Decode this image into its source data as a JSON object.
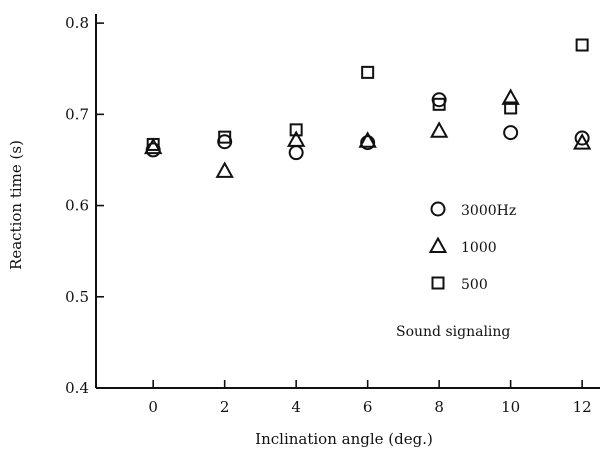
{
  "chart_data": {
    "type": "scatter",
    "title": "",
    "xlabel": "Inclination angle (deg.)",
    "ylabel": "Reaction time (s)",
    "x": [
      0,
      2,
      4,
      6,
      8,
      10,
      12
    ],
    "x_tick_labels": [
      "0",
      "2",
      "4",
      "6",
      "8",
      "10",
      "12"
    ],
    "y_tick_labels": [
      "0.4",
      "0.5",
      "0.6",
      "0.7",
      "0.8"
    ],
    "xlim": [
      -1.6,
      12.5
    ],
    "ylim": [
      0.4,
      0.81
    ],
    "grid": false,
    "legend_position": "right",
    "annotation": "Sound signaling",
    "series": [
      {
        "name": "3000Hz",
        "marker": "circle",
        "values": [
          0.661,
          0.67,
          0.658,
          0.669,
          0.716,
          0.68,
          0.674
        ]
      },
      {
        "name": "1000",
        "marker": "triangle",
        "values": [
          0.664,
          0.638,
          0.672,
          0.671,
          0.682,
          0.718,
          0.669
        ]
      },
      {
        "name": "500",
        "marker": "square",
        "values": [
          0.667,
          0.675,
          0.683,
          0.746,
          0.711,
          0.707,
          0.776
        ]
      }
    ]
  }
}
